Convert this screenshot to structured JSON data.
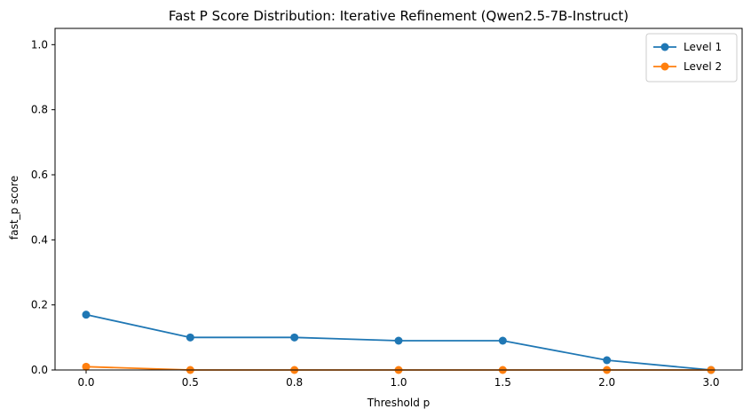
{
  "chart_data": {
    "type": "line",
    "title": "Fast P Score Distribution: Iterative Refinement (Qwen2.5-7B-Instruct)",
    "xlabel": "Threshold p",
    "ylabel": "fast_p score",
    "categories": [
      "0.0",
      "0.5",
      "0.8",
      "1.0",
      "1.5",
      "2.0",
      "3.0"
    ],
    "ylim": [
      0,
      1.05
    ],
    "yticks": [
      "0.0",
      "0.2",
      "0.4",
      "0.6",
      "0.8",
      "1.0"
    ],
    "grid": false,
    "legend_position": "top-right",
    "series": [
      {
        "name": "Level 1",
        "color": "#1f77b4",
        "values": [
          0.17,
          0.1,
          0.1,
          0.09,
          0.09,
          0.03,
          0.0
        ]
      },
      {
        "name": "Level 2",
        "color": "#ff7f0e",
        "values": [
          0.01,
          0.0,
          0.0,
          0.0,
          0.0,
          0.0,
          0.0
        ]
      }
    ]
  }
}
